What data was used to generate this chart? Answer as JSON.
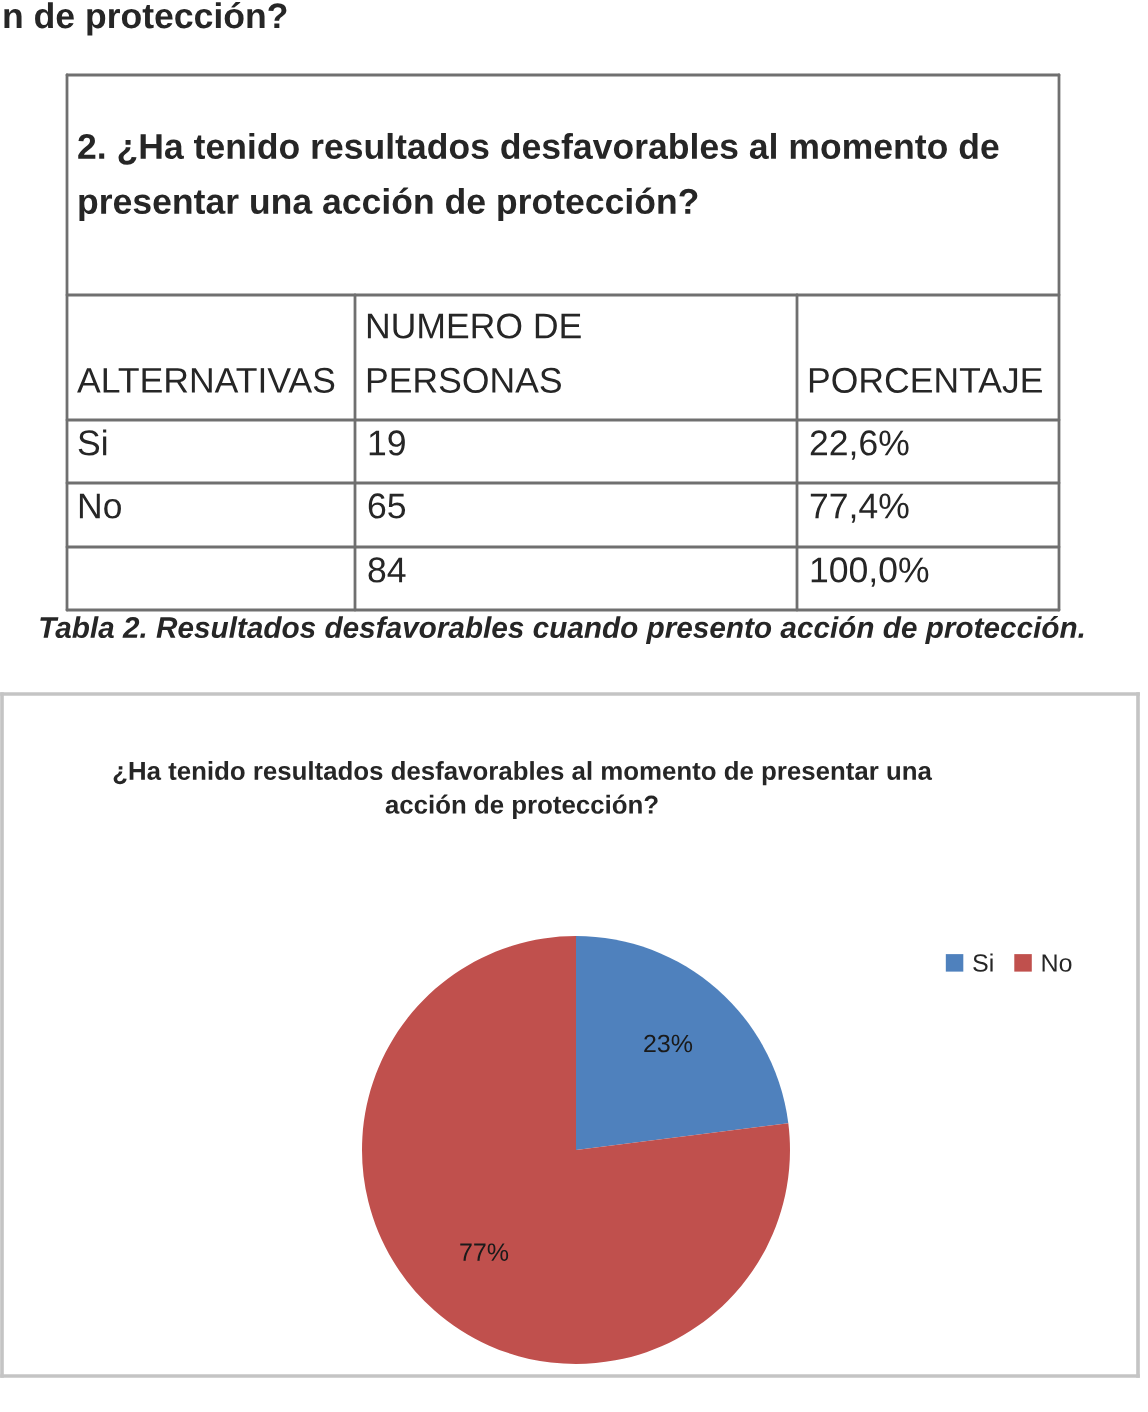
{
  "chart_data": [
    {
      "type": "other",
      "title": "2. ¿Ha tenido resultados desfavorables al momento de presentar una acción de protección?",
      "xlabel": "ALTERNATIVAS",
      "categories": [
        "Si",
        "No"
      ],
      "series": [
        {
          "name": "NUMERO DE PERSONAS",
          "values": [
            19,
            65
          ]
        },
        {
          "name": "PORCENTAJE",
          "values": [
            22.6,
            77.4
          ],
          "value_labels": [
            "22,6%",
            "77,4%"
          ]
        }
      ],
      "data_labels": true,
      "annotations": [
        "n de protección?",
        "84",
        "100,0%",
        "Tabla 2. Resultados desfavorables cuando presento acción de protección."
      ]
    },
    {
      "type": "pie",
      "title": "¿Ha tenido resultados desfavorables al momento de presentar una acción de protección?",
      "categories": [
        "Si",
        "No"
      ],
      "values": [
        23,
        77
      ],
      "colors": [
        "#4f81bd",
        "#c0504d"
      ],
      "value_labels": [
        "23%",
        "77%"
      ],
      "legend": "top right"
    }
  ]
}
